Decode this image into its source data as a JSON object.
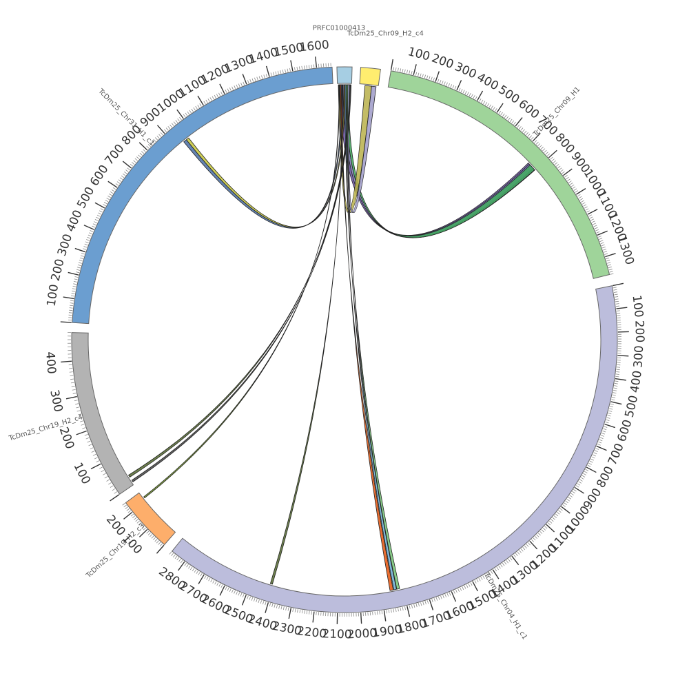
{
  "chart_data": {
    "type": "chord",
    "title": "",
    "segments": [
      {
        "id": "PRFC01000413",
        "label": "PRFC01000413",
        "length": 30,
        "color": "#a6cee3",
        "label_ticks": []
      },
      {
        "id": "TcDm25_Chr09_H2_c4",
        "label": "TcDm25_Chr09_H2_c4",
        "length": 70,
        "color": "#ffed6f",
        "label_ticks": []
      },
      {
        "id": "TcDm25_Chr09_H1",
        "label": "TcDm25_Chr09_H1",
        "length": 1380,
        "color": "#9fd49a",
        "label_ticks": [
          100,
          200,
          300,
          400,
          500,
          600,
          700,
          800,
          900,
          1000,
          1100,
          1200,
          1300
        ]
      },
      {
        "id": "TcDm25_Chr04_H1_c1",
        "label": "TcDm25_Chr04_H1_c1",
        "length": 2870,
        "color": "#bcbddc",
        "label_ticks": [
          100,
          200,
          300,
          400,
          500,
          600,
          700,
          800,
          900,
          1000,
          1100,
          1200,
          1300,
          1400,
          1500,
          1600,
          1700,
          1800,
          1900,
          2000,
          2100,
          2200,
          2300,
          2400,
          2500,
          2600,
          2700,
          2800
        ]
      },
      {
        "id": "TcDm25_Chr19_H2_c3",
        "label": "TcDm25_Chr19_H2_c3",
        "length": 250,
        "color": "#fdae6b",
        "label_ticks": [
          100,
          200
        ]
      },
      {
        "id": "TcDm25_Chr19_H2_c4",
        "label": "TcDm25_Chr19_H2_c4",
        "length": 480,
        "color": "#b3b3b3",
        "label_ticks": [
          100,
          200,
          300,
          400
        ]
      },
      {
        "id": "TcDm25_Chr31_H1_c1",
        "label": "TcDm25_Chr31_H1_c1",
        "length": 1665,
        "color": "#6b9ed0",
        "label_ticks": [
          100,
          200,
          300,
          400,
          500,
          600,
          700,
          800,
          900,
          1000,
          1100,
          1200,
          1300,
          1400,
          1500,
          1600
        ]
      }
    ],
    "links": [
      {
        "source": "PRFC01000413",
        "source_pos": [
          5,
          12
        ],
        "target": "TcDm25_Chr09_H1",
        "target_pos": [
          755,
          800
        ],
        "color": "#6a51a3"
      },
      {
        "source": "PRFC01000413",
        "source_pos": [
          12,
          18
        ],
        "target": "TcDm25_Chr09_H1",
        "target_pos": [
          762,
          790
        ],
        "color": "#807dba"
      },
      {
        "source": "PRFC01000413",
        "source_pos": [
          18,
          24
        ],
        "target": "TcDm25_Chr09_H1",
        "target_pos": [
          768,
          798
        ],
        "color": "#41ab5d"
      },
      {
        "source": "PRFC01000413",
        "source_pos": [
          2,
          5
        ],
        "target": "TcDm25_Chr09_H2_c4",
        "target_pos": [
          20,
          45
        ],
        "color": "#b8b04a"
      },
      {
        "source": "PRFC01000413",
        "source_pos": [
          22,
          26
        ],
        "target": "TcDm25_Chr09_H2_c4",
        "target_pos": [
          45,
          62
        ],
        "color": "#9e9ac8"
      },
      {
        "source": "PRFC01000413",
        "source_pos": [
          8,
          10
        ],
        "target": "TcDm25_Chr31_H1_c1",
        "target_pos": [
          940,
          955
        ],
        "color": "#4a6fa5"
      },
      {
        "source": "PRFC01000413",
        "source_pos": [
          14,
          16
        ],
        "target": "TcDm25_Chr31_H1_c1",
        "target_pos": [
          955,
          968
        ],
        "color": "#c7c73a"
      },
      {
        "source": "PRFC01000413",
        "source_pos": [
          26,
          28
        ],
        "target": "TcDm25_Chr19_H2_c4",
        "target_pos": [
          25,
          32
        ],
        "color": "#556b2f"
      },
      {
        "source": "PRFC01000413",
        "source_pos": [
          27,
          29
        ],
        "target": "TcDm25_Chr19_H2_c4",
        "target_pos": [
          8,
          14
        ],
        "color": "#444444"
      },
      {
        "source": "PRFC01000413",
        "source_pos": [
          3,
          4
        ],
        "target": "TcDm25_Chr19_H2_c3",
        "target_pos": [
          215,
          222
        ],
        "color": "#6b8e23"
      },
      {
        "source": "PRFC01000413",
        "source_pos": [
          10,
          11
        ],
        "target": "TcDm25_Chr04_H1_c1",
        "target_pos": [
          2405,
          2415
        ],
        "color": "#556b2f"
      },
      {
        "source": "PRFC01000413",
        "source_pos": [
          6,
          8
        ],
        "target": "TcDm25_Chr04_H1_c1",
        "target_pos": [
          1845,
          1860
        ],
        "color": "#e6550d"
      },
      {
        "source": "PRFC01000413",
        "source_pos": [
          16,
          18
        ],
        "target": "TcDm25_Chr04_H1_c1",
        "target_pos": [
          1830,
          1842
        ],
        "color": "#6baed6"
      },
      {
        "source": "PRFC01000413",
        "source_pos": [
          20,
          22
        ],
        "target": "TcDm25_Chr04_H1_c1",
        "target_pos": [
          1815,
          1828
        ],
        "color": "#74c476"
      }
    ]
  }
}
